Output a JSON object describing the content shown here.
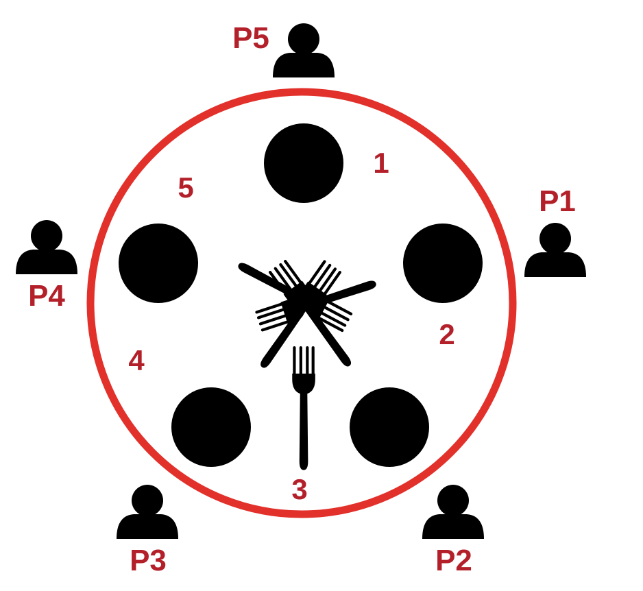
{
  "colors": {
    "table_ring": "#e2302a",
    "label": "#b3202a",
    "ink": "#000000",
    "background": "#ffffff"
  },
  "philosophers": [
    {
      "label": "P1",
      "icon": "person-icon"
    },
    {
      "label": "P2",
      "icon": "person-icon"
    },
    {
      "label": "P3",
      "icon": "person-icon"
    },
    {
      "label": "P4",
      "icon": "person-icon"
    },
    {
      "label": "P5",
      "icon": "person-icon"
    }
  ],
  "forks": [
    {
      "label": "1",
      "icon": "fork-icon"
    },
    {
      "label": "2",
      "icon": "fork-icon"
    },
    {
      "label": "3",
      "icon": "fork-icon"
    },
    {
      "label": "4",
      "icon": "fork-icon"
    },
    {
      "label": "5",
      "icon": "fork-icon"
    }
  ],
  "plates": 5
}
